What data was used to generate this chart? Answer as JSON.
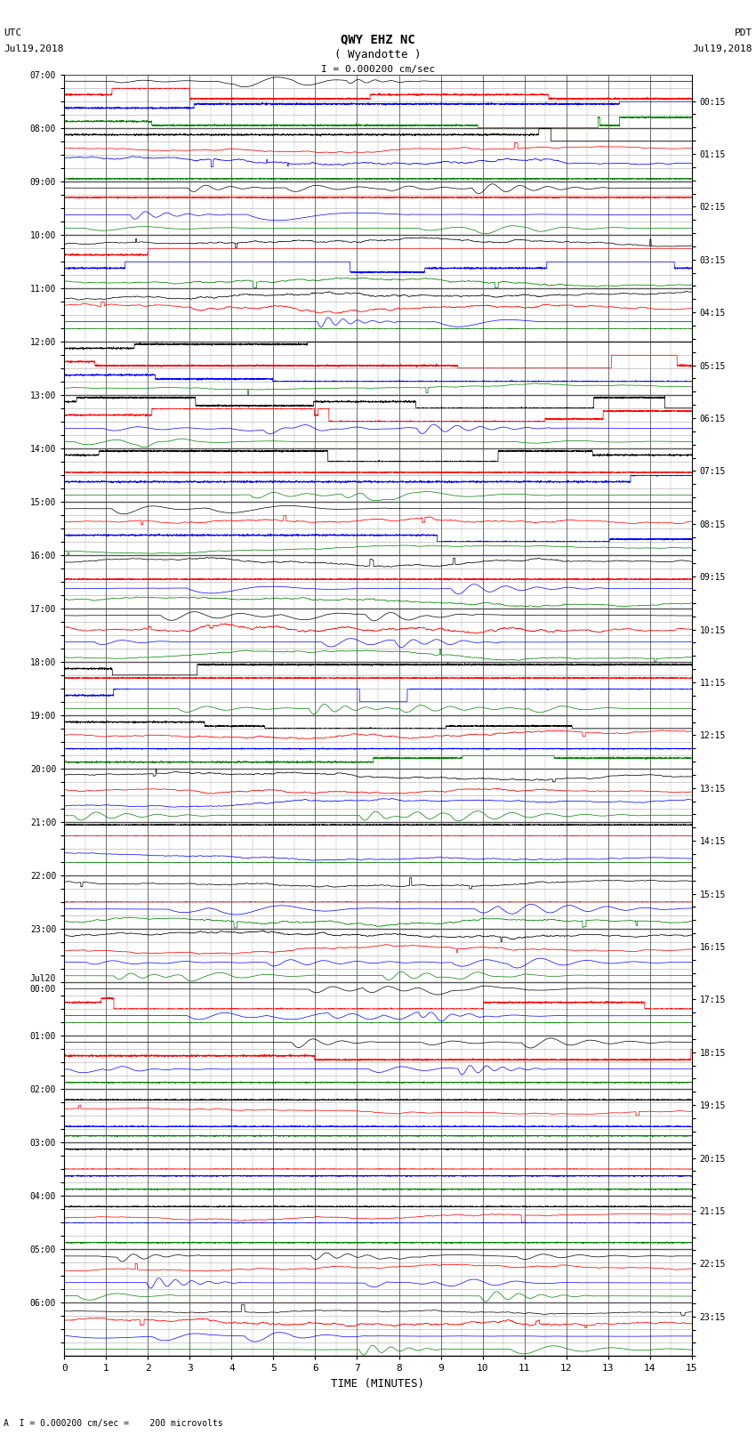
{
  "title_line1": "QWY EHZ NC",
  "title_line2": "( Wyandotte )",
  "scale_label": "I = 0.000200 cm/sec",
  "footer_label": "A  I = 0.000200 cm/sec =    200 microvolts",
  "xlabel": "TIME (MINUTES)",
  "bg_color": "#ffffff",
  "grid_color_major": "#555555",
  "grid_color_minor": "#aaaaaa",
  "trace_colors": [
    "#000000",
    "#ff0000",
    "#0000ff",
    "#008000"
  ],
  "left_times": [
    "07:00",
    "",
    "",
    "",
    "08:00",
    "",
    "",
    "",
    "09:00",
    "",
    "",
    "",
    "10:00",
    "",
    "",
    "",
    "11:00",
    "",
    "",
    "",
    "12:00",
    "",
    "",
    "",
    "13:00",
    "",
    "",
    "",
    "14:00",
    "",
    "",
    "",
    "15:00",
    "",
    "",
    "",
    "16:00",
    "",
    "",
    "",
    "17:00",
    "",
    "",
    "",
    "18:00",
    "",
    "",
    "",
    "19:00",
    "",
    "",
    "",
    "20:00",
    "",
    "",
    "",
    "21:00",
    "",
    "",
    "",
    "22:00",
    "",
    "",
    "",
    "23:00",
    "",
    "",
    "",
    "Jul20\n00:00",
    "",
    "",
    "",
    "01:00",
    "",
    "",
    "",
    "02:00",
    "",
    "",
    "",
    "03:00",
    "",
    "",
    "",
    "04:00",
    "",
    "",
    "",
    "05:00",
    "",
    "",
    "",
    "06:00",
    "",
    "",
    ""
  ],
  "right_times": [
    "00:15",
    "",
    "",
    "",
    "01:15",
    "",
    "",
    "",
    "02:15",
    "",
    "",
    "",
    "03:15",
    "",
    "",
    "",
    "04:15",
    "",
    "",
    "",
    "05:15",
    "",
    "",
    "",
    "06:15",
    "",
    "",
    "",
    "07:15",
    "",
    "",
    "",
    "08:15",
    "",
    "",
    "",
    "09:15",
    "",
    "",
    "",
    "10:15",
    "",
    "",
    "",
    "11:15",
    "",
    "",
    "",
    "12:15",
    "",
    "",
    "",
    "13:15",
    "",
    "",
    "",
    "14:15",
    "",
    "",
    "",
    "15:15",
    "",
    "",
    "",
    "16:15",
    "",
    "",
    "",
    "17:15",
    "",
    "",
    "",
    "18:15",
    "",
    "",
    "",
    "19:15",
    "",
    "",
    "",
    "20:15",
    "",
    "",
    "",
    "21:15",
    "",
    "",
    "",
    "22:15",
    "",
    "",
    "",
    "23:15",
    "",
    "",
    ""
  ],
  "n_rows": 96,
  "n_minutes": 15,
  "fig_width": 8.5,
  "fig_height": 16.13,
  "dpi": 100
}
